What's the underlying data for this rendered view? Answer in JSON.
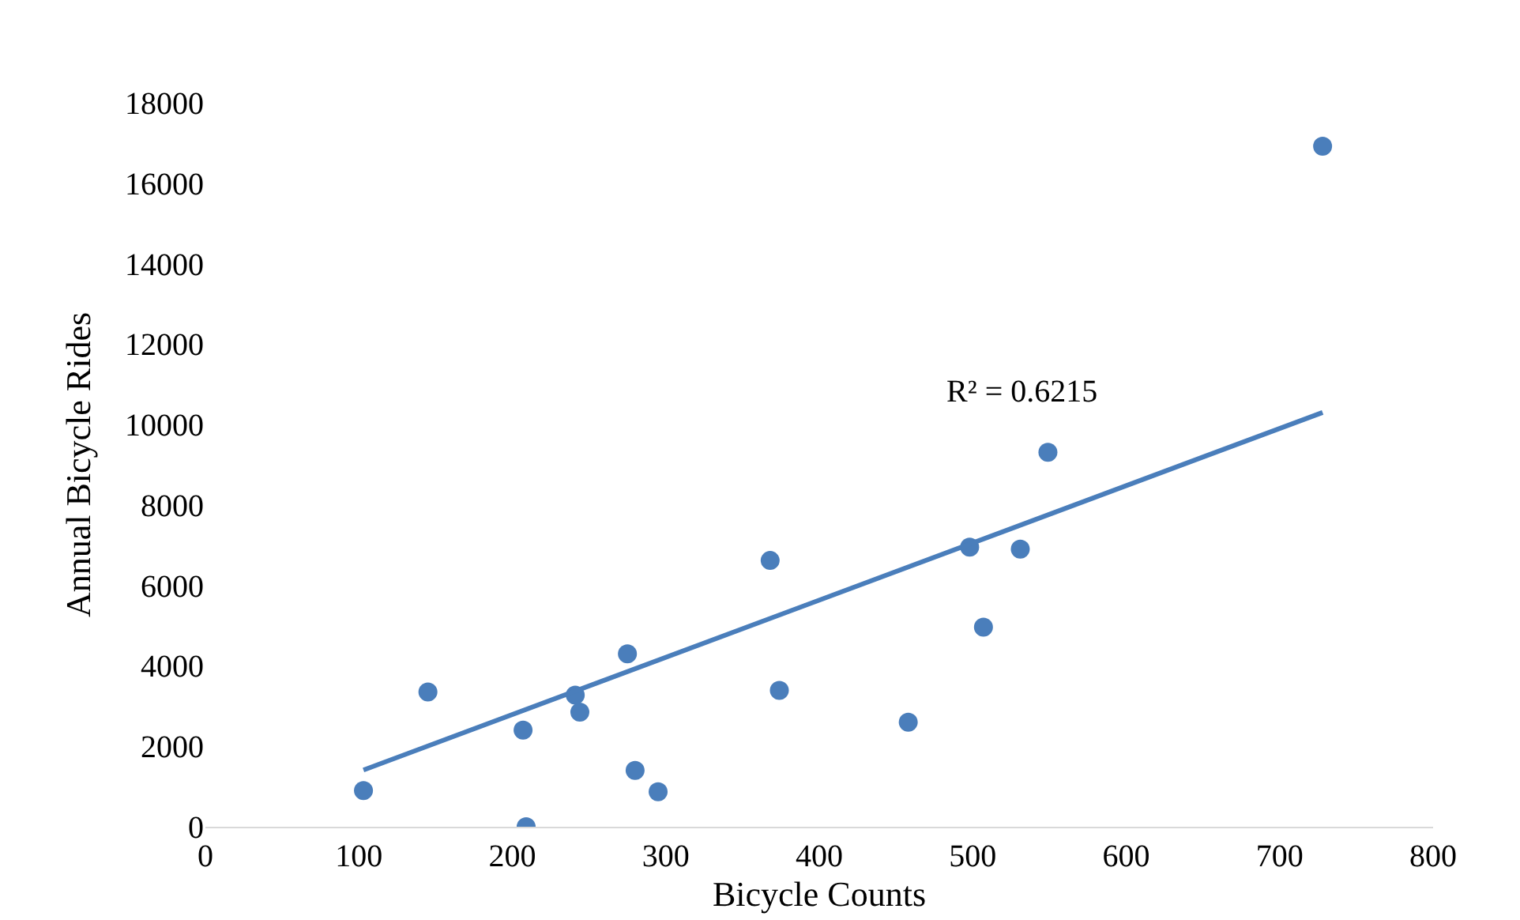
{
  "chart_data": {
    "type": "scatter",
    "xlabel": "Bicycle Counts",
    "ylabel": "Annual Bicycle Rides",
    "xlim": [
      0,
      800
    ],
    "xticks": [
      0,
      100,
      200,
      300,
      400,
      500,
      600,
      700,
      800
    ],
    "ylim": [
      0,
      18000
    ],
    "yticks": [
      0,
      2000,
      4000,
      6000,
      8000,
      10000,
      12000,
      14000,
      16000,
      18000
    ],
    "series": [
      {
        "marker": "circle",
        "color": "#4a7ebb",
        "x": [
          103,
          145,
          207,
          209,
          241,
          244,
          275,
          280,
          295,
          368,
          374,
          458,
          498,
          507,
          531,
          549,
          728
        ],
        "values": [
          900,
          3350,
          2400,
          0,
          3270,
          2850,
          4300,
          1400,
          870,
          6620,
          3390,
          2600,
          6950,
          4960,
          6900,
          9310,
          16920
        ]
      },
      {
        "type": "line",
        "marker": "none",
        "color": "#4a7ebb",
        "line_style": "solid",
        "x": [
          103,
          728
        ],
        "values": [
          1410,
          10300
        ]
      }
    ],
    "annotations": [
      "R² = 0.6215"
    ]
  }
}
